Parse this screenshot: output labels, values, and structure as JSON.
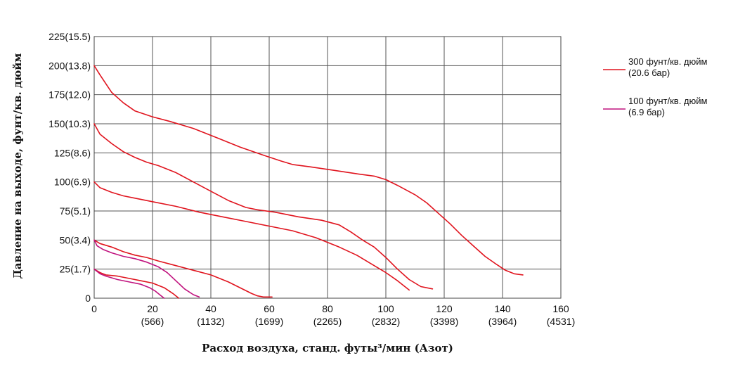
{
  "chart_data": {
    "type": "line",
    "title": "",
    "xlabel": "Расход воздуха, станд. футы³/мин (Азот)",
    "ylabel": "Давление на выходе, фунт/кв. дюйм",
    "xlim": [
      0,
      160
    ],
    "ylim": [
      0,
      225
    ],
    "grid": true,
    "legend_position": "right",
    "x_ticks": [
      {
        "value": 0,
        "label": "0",
        "sublabel": ""
      },
      {
        "value": 20,
        "label": "20",
        "sublabel": "(566)"
      },
      {
        "value": 40,
        "label": "40",
        "sublabel": "(1132)"
      },
      {
        "value": 60,
        "label": "60",
        "sublabel": "(1699)"
      },
      {
        "value": 80,
        "label": "80",
        "sublabel": "(2265)"
      },
      {
        "value": 100,
        "label": "100",
        "sublabel": "(2832)"
      },
      {
        "value": 120,
        "label": "120",
        "sublabel": "(3398)"
      },
      {
        "value": 140,
        "label": "140",
        "sublabel": "(3964)"
      },
      {
        "value": 160,
        "label": "160",
        "sublabel": "(4531)"
      }
    ],
    "y_ticks": [
      {
        "value": 0,
        "label": "0"
      },
      {
        "value": 25,
        "label": "25(1.7)"
      },
      {
        "value": 50,
        "label": "50(3.4)"
      },
      {
        "value": 75,
        "label": "75(5.1)"
      },
      {
        "value": 100,
        "label": "100(6.9)"
      },
      {
        "value": 125,
        "label": "125(8.6)"
      },
      {
        "value": 150,
        "label": "150(10.3)"
      },
      {
        "value": 175,
        "label": "175(12.0)"
      },
      {
        "value": 200,
        "label": "200(13.8)"
      },
      {
        "value": 225,
        "label": "225(15.5)"
      }
    ],
    "legend": [
      {
        "line1": "300 фунт/кв. дюйм",
        "line2": "(20.6 бар)",
        "color": "#e0141e"
      },
      {
        "line1": "100 фунт/кв. дюйм",
        "line2": "(6.9 бар)",
        "color": "#c0127e"
      }
    ],
    "series": [
      {
        "inlet": "300",
        "color": "#e0141e",
        "points": [
          [
            0,
            200
          ],
          [
            2,
            192
          ],
          [
            6,
            177
          ],
          [
            10,
            168
          ],
          [
            14,
            161
          ],
          [
            20,
            156
          ],
          [
            26,
            152
          ],
          [
            34,
            146
          ],
          [
            42,
            138
          ],
          [
            50,
            130
          ],
          [
            58,
            123
          ],
          [
            64,
            118
          ],
          [
            68,
            115
          ],
          [
            74,
            113
          ],
          [
            82,
            110
          ],
          [
            90,
            107
          ],
          [
            96,
            105
          ],
          [
            100,
            102
          ],
          [
            104,
            97
          ],
          [
            110,
            89
          ],
          [
            114,
            82
          ],
          [
            118,
            73
          ],
          [
            122,
            64
          ],
          [
            126,
            54
          ],
          [
            130,
            45
          ],
          [
            134,
            36
          ],
          [
            138,
            29
          ],
          [
            141,
            24
          ],
          [
            144,
            21
          ],
          [
            147,
            20
          ]
        ]
      },
      {
        "inlet": "300",
        "color": "#e0141e",
        "points": [
          [
            0,
            150
          ],
          [
            2,
            141
          ],
          [
            6,
            133
          ],
          [
            10,
            126
          ],
          [
            14,
            121
          ],
          [
            18,
            117
          ],
          [
            22,
            114
          ],
          [
            28,
            108
          ],
          [
            34,
            100
          ],
          [
            40,
            92
          ],
          [
            46,
            84
          ],
          [
            52,
            78
          ],
          [
            56,
            76
          ],
          [
            62,
            74
          ],
          [
            70,
            70
          ],
          [
            78,
            67
          ],
          [
            84,
            63
          ],
          [
            88,
            57
          ],
          [
            92,
            50
          ],
          [
            96,
            44
          ],
          [
            100,
            35
          ],
          [
            104,
            25
          ],
          [
            108,
            16
          ],
          [
            112,
            10
          ],
          [
            116,
            8
          ]
        ]
      },
      {
        "inlet": "300",
        "color": "#e0141e",
        "points": [
          [
            0,
            100
          ],
          [
            2,
            95
          ],
          [
            6,
            91
          ],
          [
            10,
            88
          ],
          [
            14,
            86
          ],
          [
            20,
            83
          ],
          [
            28,
            79
          ],
          [
            36,
            74
          ],
          [
            44,
            70
          ],
          [
            52,
            66
          ],
          [
            60,
            62
          ],
          [
            68,
            58
          ],
          [
            76,
            52
          ],
          [
            84,
            44
          ],
          [
            90,
            37
          ],
          [
            96,
            28
          ],
          [
            100,
            22
          ],
          [
            104,
            15
          ],
          [
            108,
            7
          ]
        ]
      },
      {
        "inlet": "300",
        "color": "#e0141e",
        "points": [
          [
            0,
            50
          ],
          [
            2,
            47
          ],
          [
            6,
            44
          ],
          [
            10,
            40
          ],
          [
            14,
            37
          ],
          [
            18,
            35
          ],
          [
            22,
            32
          ],
          [
            28,
            28
          ],
          [
            34,
            24
          ],
          [
            40,
            20
          ],
          [
            46,
            14
          ],
          [
            50,
            9
          ],
          [
            54,
            4
          ],
          [
            56,
            2
          ],
          [
            58,
            1
          ],
          [
            61,
            1
          ]
        ]
      },
      {
        "inlet": "100",
        "color": "#c0127e",
        "points": [
          [
            0,
            50
          ],
          [
            1,
            45
          ],
          [
            3,
            42
          ],
          [
            6,
            39
          ],
          [
            10,
            36
          ],
          [
            14,
            34
          ],
          [
            18,
            31
          ],
          [
            22,
            27
          ],
          [
            25,
            22
          ],
          [
            28,
            15
          ],
          [
            31,
            8
          ],
          [
            34,
            3
          ],
          [
            36,
            1
          ]
        ]
      },
      {
        "inlet": "300",
        "color": "#e0141e",
        "points": [
          [
            0,
            25
          ],
          [
            2,
            22
          ],
          [
            4,
            20
          ],
          [
            8,
            19
          ],
          [
            12,
            17
          ],
          [
            16,
            15
          ],
          [
            20,
            13
          ],
          [
            24,
            9
          ],
          [
            27,
            4
          ],
          [
            29,
            0
          ]
        ]
      },
      {
        "inlet": "100",
        "color": "#c0127e",
        "points": [
          [
            0,
            25
          ],
          [
            2,
            21
          ],
          [
            4,
            19
          ],
          [
            8,
            16
          ],
          [
            12,
            14
          ],
          [
            16,
            12
          ],
          [
            19,
            9
          ],
          [
            21,
            6
          ],
          [
            23,
            2
          ],
          [
            24,
            0
          ]
        ]
      }
    ]
  }
}
